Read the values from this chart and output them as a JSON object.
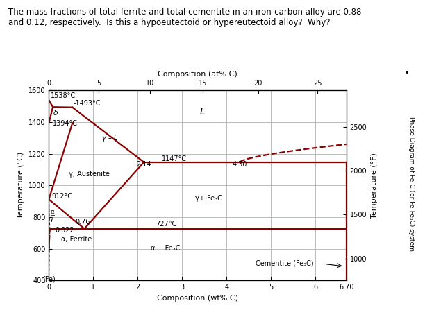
{
  "title_text": "The mass fractions of total ferrite and total cementite in an iron-carbon alloy are 0.88\nand 0.12, respectively.  Is this a hypoeutectoid or hypereutectoid alloy?  Why?",
  "top_xlabel": "Composition (at% C)",
  "bottom_xlabel": "Composition (wt% C)",
  "ylabel_left": "Temperature (°C)",
  "ylabel_right": "Temperature (°F)",
  "right_label": "Phase Diagram of Fe-C (or Fe-Fe₃C) system",
  "bullet": "•",
  "xlim": [
    0,
    6.7
  ],
  "ylim": [
    400,
    1600
  ],
  "background_color": "#ffffff",
  "line_color": "#8b0000",
  "grid_color": "#bbbbbb",
  "top_tick_wt": [
    0,
    1.12,
    2.28,
    3.47,
    4.71,
    6.05
  ],
  "top_tick_labels": [
    "0",
    "5",
    "10",
    "15",
    "20",
    "25"
  ],
  "bottom_xticks": [
    0,
    1,
    2,
    3,
    4,
    5,
    6,
    6.7
  ],
  "bottom_xtick_labels": [
    "0",
    "1",
    "2",
    "3",
    "4",
    "5",
    "6",
    "6.70"
  ],
  "yticks_left": [
    400,
    600,
    800,
    1000,
    1200,
    1400,
    1600
  ],
  "ytick_left_labels": [
    "400",
    "600",
    "800",
    "1000",
    "1200",
    "1400",
    "1600"
  ],
  "yticks_right_c": [
    538,
    816,
    1093,
    1371
  ],
  "ytick_right_labels": [
    "1000",
    "1500",
    "2000",
    "2500"
  ]
}
